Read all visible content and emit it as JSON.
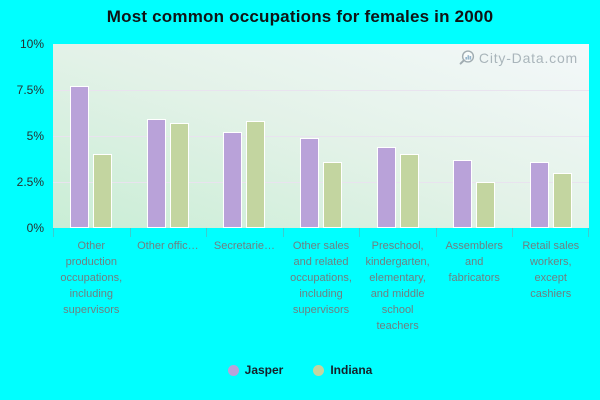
{
  "title": "Most common occupations for females in 2000",
  "watermark": {
    "text": "City-Data.com",
    "icon": "magnifier-barchart-icon"
  },
  "colors": {
    "page_background": "#00ffff",
    "jasper": "#b9a2d9",
    "indiana": "#c3d5a0",
    "bar_outline": "#ffffff",
    "plot_gradient_bottom": "#c9edd5",
    "plot_gradient_top": "#f4f8fa",
    "gridline": "#e9e3ef",
    "title_text": "#101314",
    "y_axis_text": "#273030",
    "category_text": "#6f7f81",
    "legend_text": "#15202a",
    "watermark_text": "#a4b0b6"
  },
  "chart_data": {
    "type": "bar",
    "title": "Most common occupations for females in 2000",
    "categories": [
      "Other production occupations, including supervisors",
      "Other offic…",
      "Secretarie…",
      "Other sales and related occupations, including supervisors",
      "Preschool, kindergarten, elementary, and middle school teachers",
      "Assemblers and fabricators",
      "Retail sales workers, except cashiers"
    ],
    "series": [
      {
        "name": "Jasper",
        "color": "#b9a2d9",
        "values": [
          7.7,
          5.9,
          5.2,
          4.9,
          4.4,
          3.7,
          3.6
        ]
      },
      {
        "name": "Indiana",
        "color": "#c3d5a0",
        "values": [
          4.0,
          5.7,
          5.8,
          3.6,
          4.0,
          2.5,
          3.0
        ]
      }
    ],
    "xlabel": "",
    "ylabel": "",
    "ylim": [
      0,
      10
    ],
    "yticks": [
      {
        "value": 0,
        "label": "0%"
      },
      {
        "value": 2.5,
        "label": "2.5%"
      },
      {
        "value": 5,
        "label": "5%"
      },
      {
        "value": 7.5,
        "label": "7.5%"
      },
      {
        "value": 10,
        "label": "10%"
      }
    ],
    "grid": true,
    "legend_position": "bottom"
  }
}
